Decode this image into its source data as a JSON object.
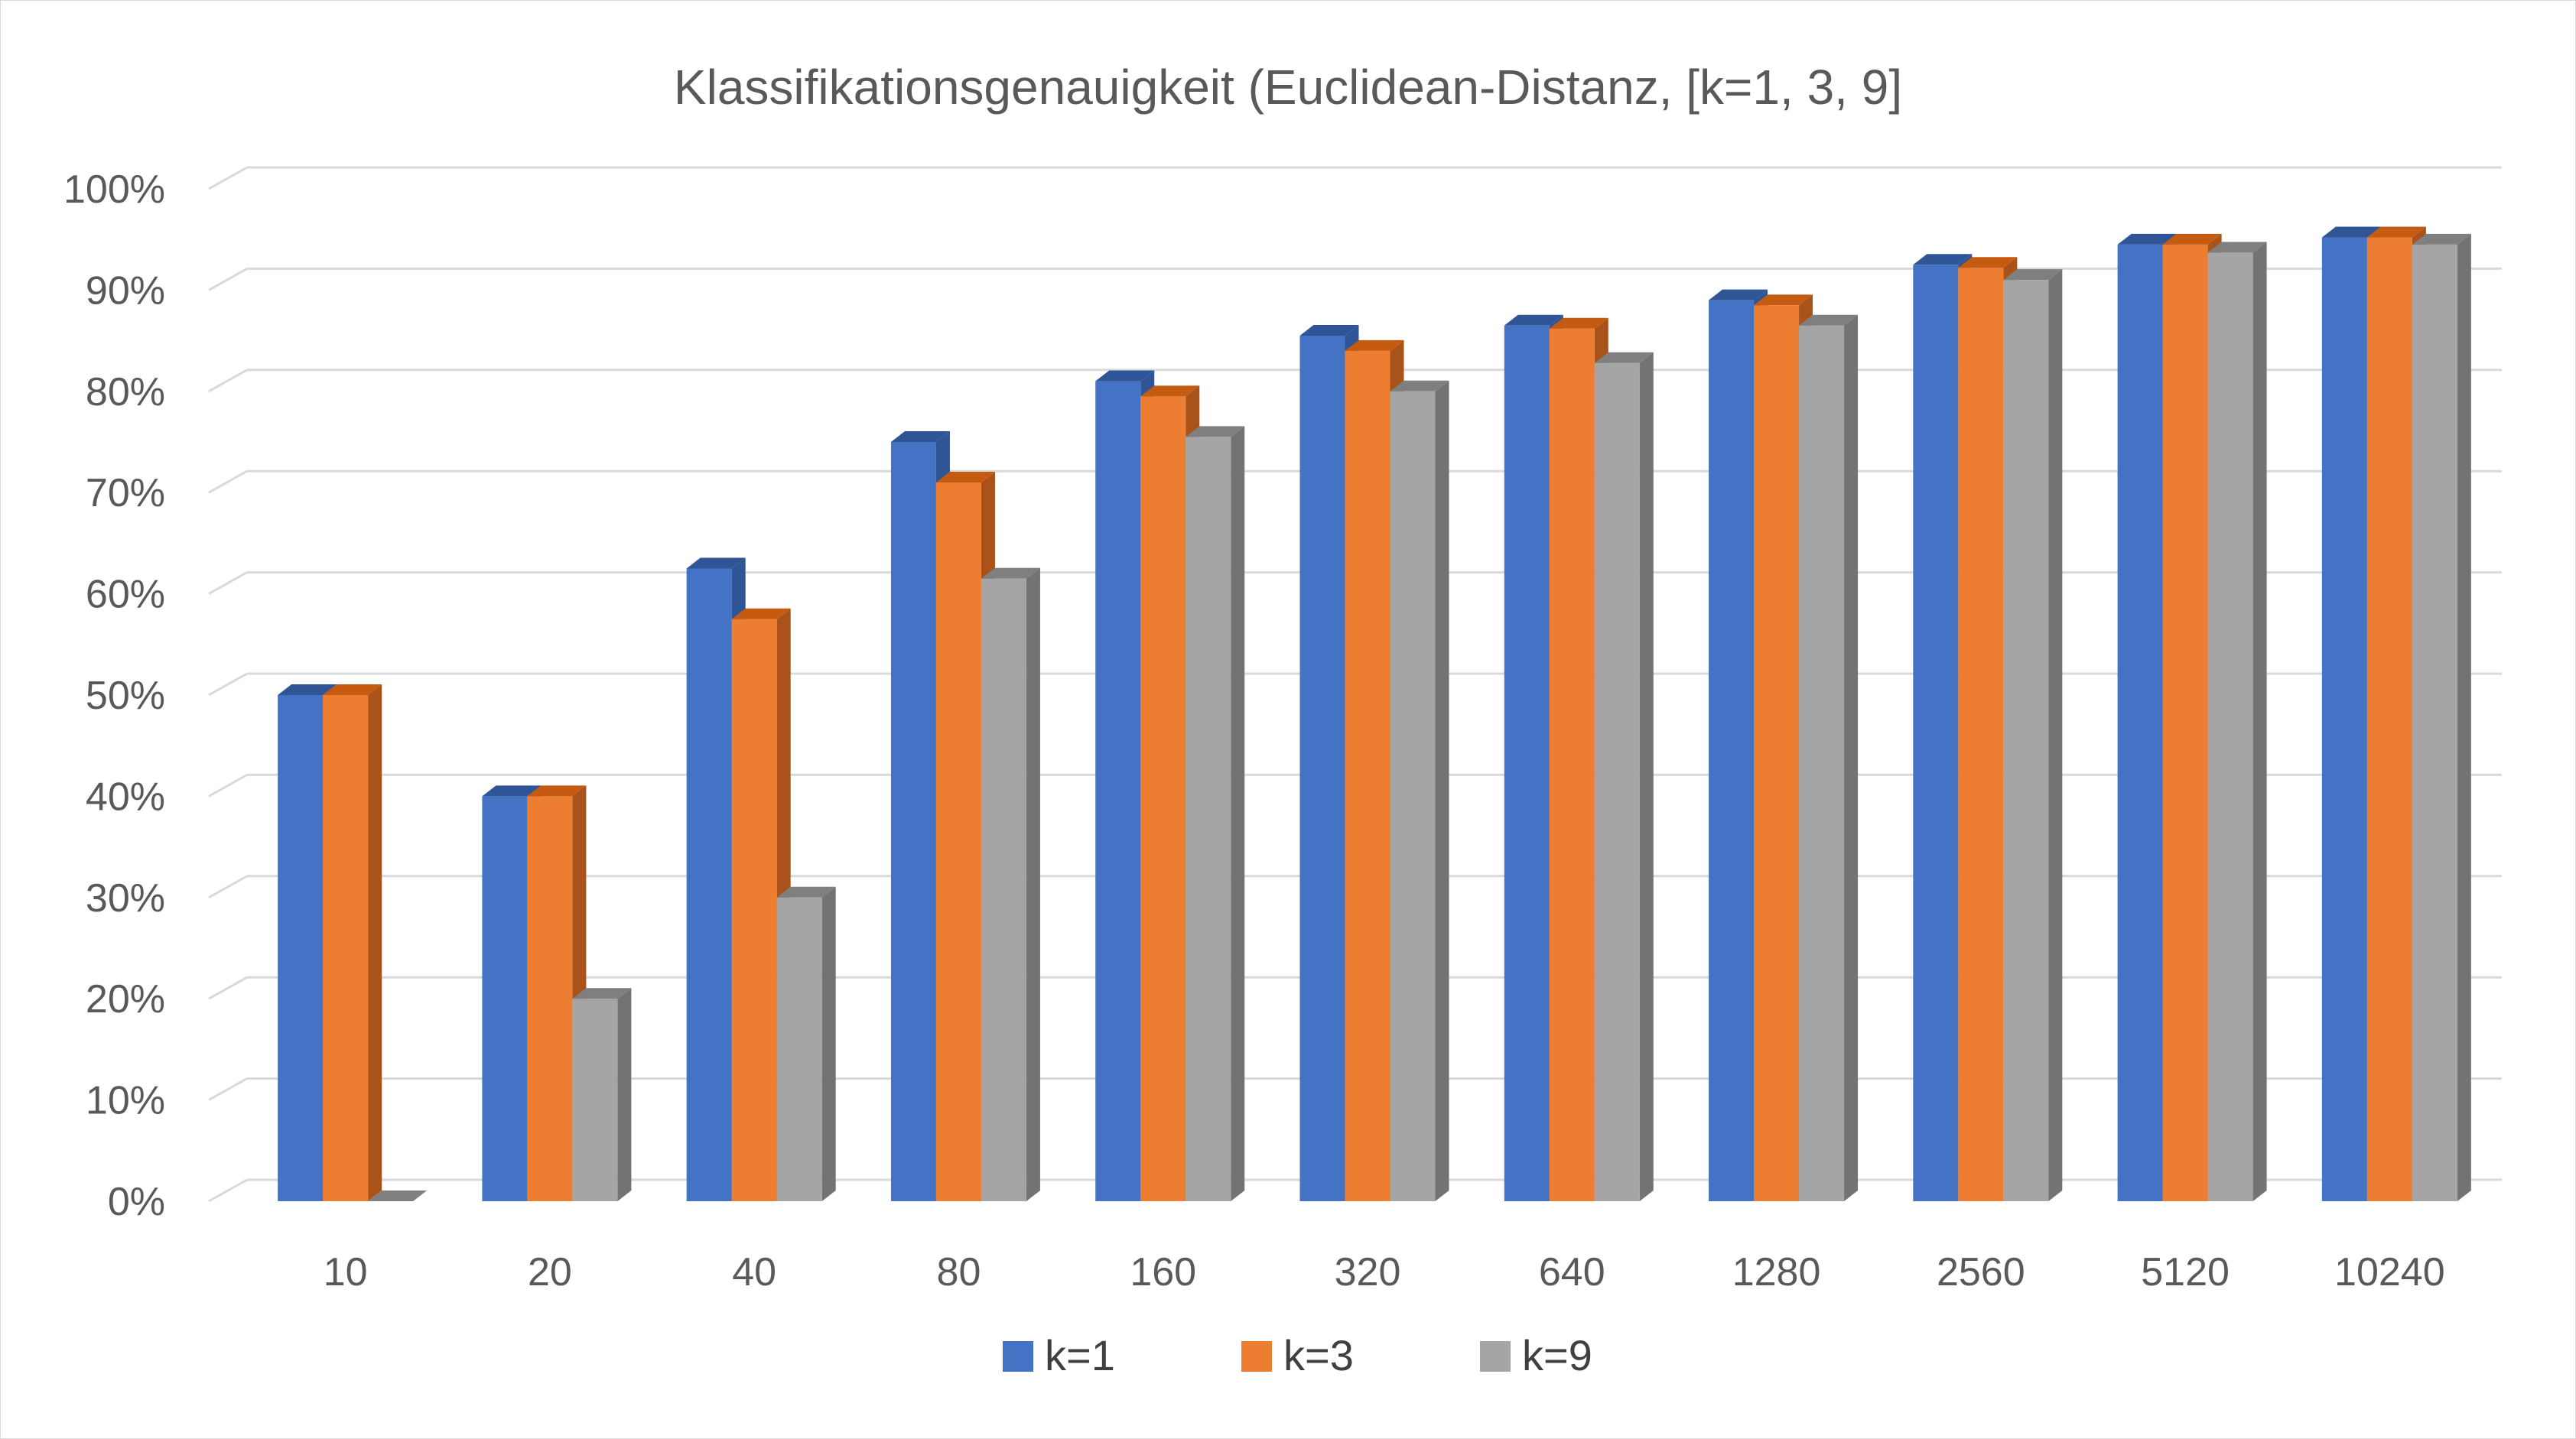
{
  "chart_data": {
    "type": "bar",
    "variant": "3d-clustered-column",
    "title": "Klassifikationsgenauigkeit (Euclidean-Distanz, [k=1, 3, 9]",
    "xlabel": "",
    "ylabel": "",
    "categories": [
      "10",
      "20",
      "40",
      "80",
      "160",
      "320",
      "640",
      "1280",
      "2560",
      "5120",
      "10240"
    ],
    "series": [
      {
        "name": "k=1",
        "color": "#4472C4",
        "top_color": "#2F5597",
        "side_color": "#2F5597",
        "values": [
          0.5,
          0.4,
          0.625,
          0.75,
          0.81,
          0.855,
          0.865,
          0.89,
          0.925,
          0.945,
          0.952
        ]
      },
      {
        "name": "k=3",
        "color": "#ED7D31",
        "top_color": "#C55A11",
        "side_color": "#A9521A",
        "values": [
          0.5,
          0.4,
          0.575,
          0.71,
          0.795,
          0.84,
          0.862,
          0.885,
          0.922,
          0.945,
          0.952
        ]
      },
      {
        "name": "k=9",
        "color": "#A5A5A5",
        "top_color": "#7F7F7F",
        "side_color": "#737373",
        "values": [
          0.0,
          0.2,
          0.3,
          0.615,
          0.755,
          0.8,
          0.828,
          0.865,
          0.91,
          0.937,
          0.945
        ]
      }
    ],
    "y_ticks": [
      "0%",
      "10%",
      "20%",
      "30%",
      "40%",
      "50%",
      "60%",
      "70%",
      "80%",
      "90%",
      "100%"
    ],
    "ylim": [
      0,
      1
    ],
    "grid": true,
    "legend_position": "bottom"
  }
}
